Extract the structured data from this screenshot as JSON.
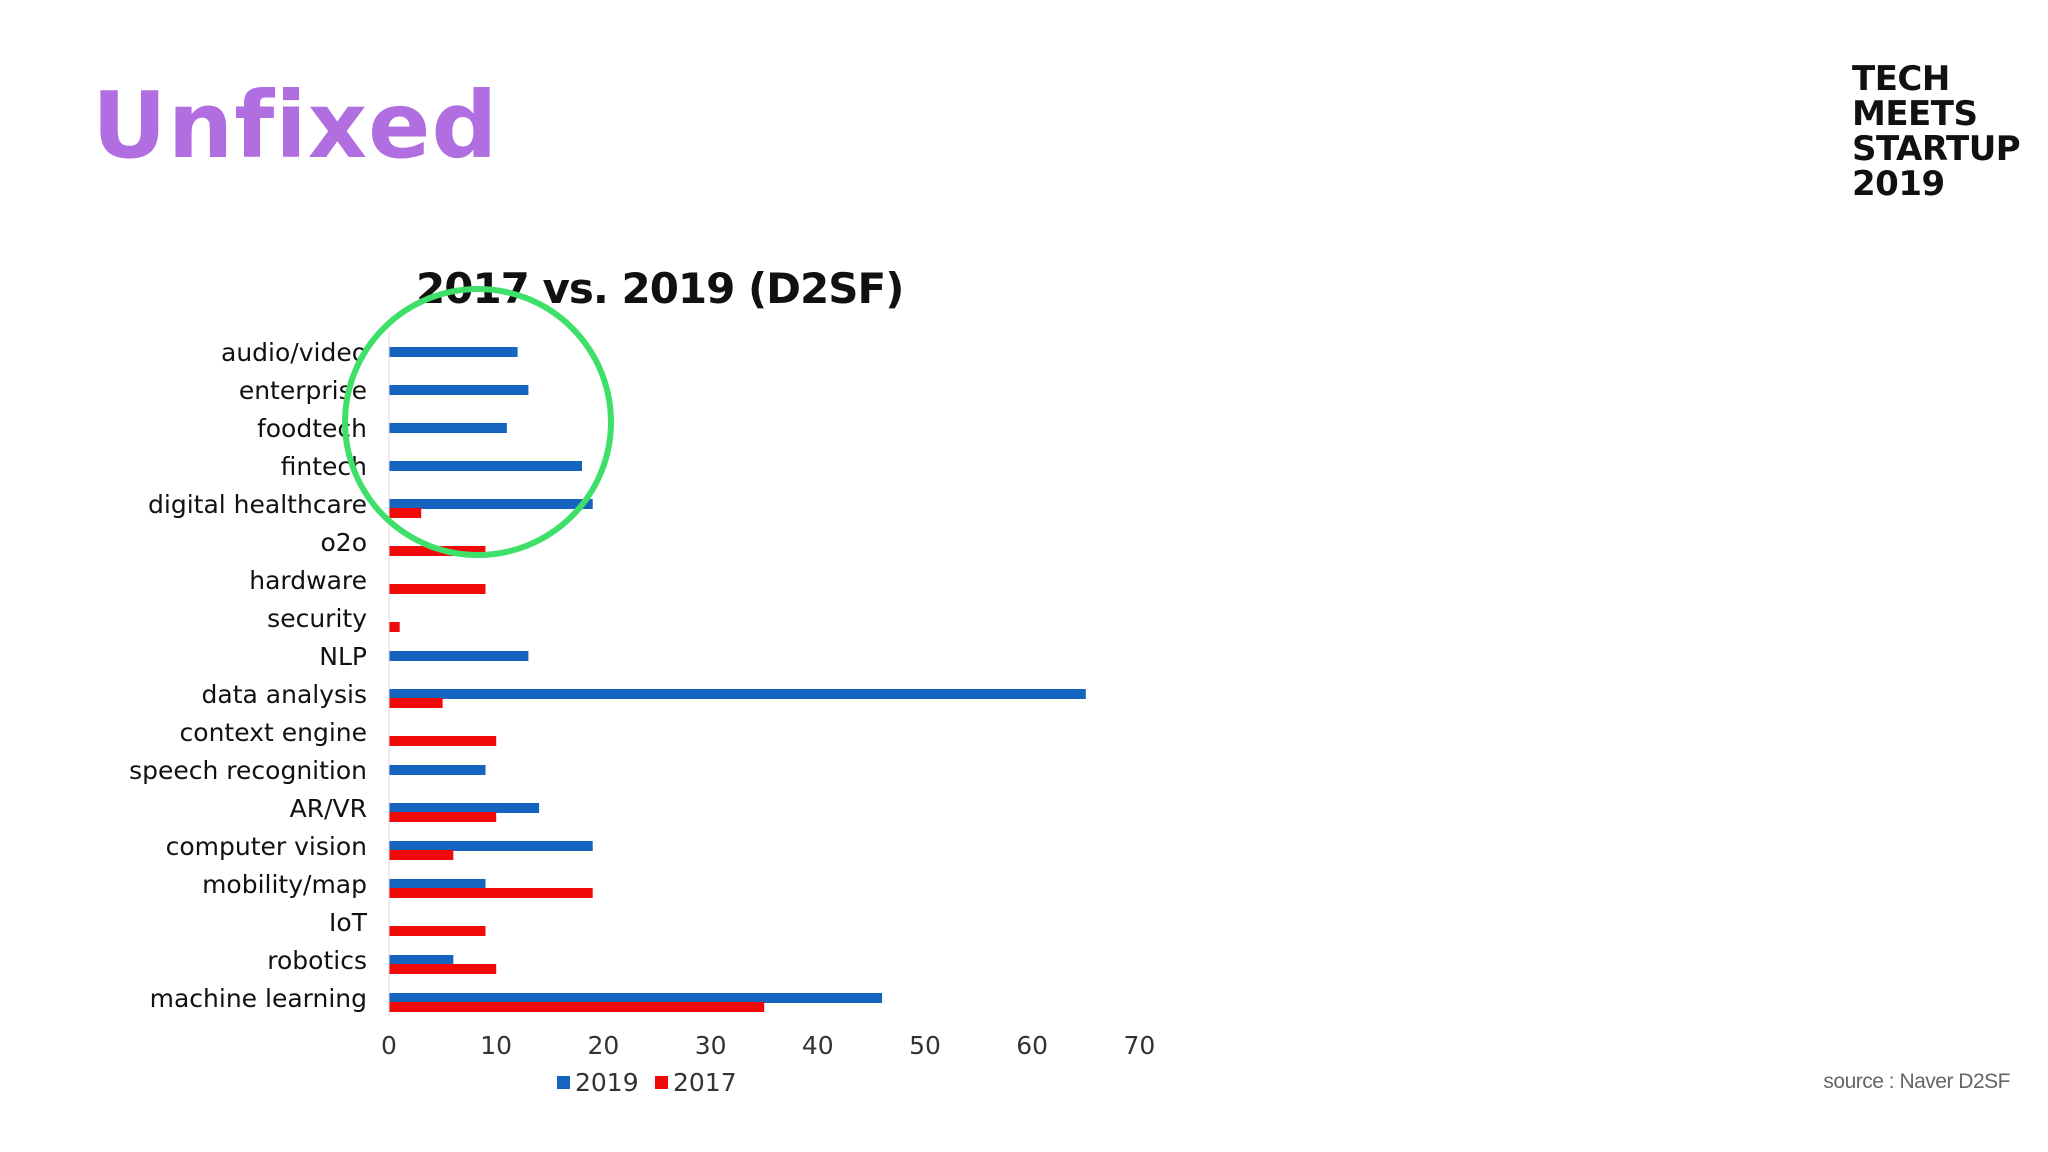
{
  "slide": {
    "title": "Unfixed",
    "brand_lines": [
      "TECH",
      "MEETS",
      "STARTUP",
      "2019"
    ],
    "source": "source : Naver D2SF"
  },
  "colors": {
    "title": "#b06ee0",
    "series_2019": "#1565c0",
    "series_2017": "#f00a0a",
    "highlight_circle": "#3ee06a"
  },
  "chart_data": {
    "type": "bar",
    "orientation": "horizontal",
    "title": "2017 vs. 2019 (D2SF)",
    "categories": [
      "audio/video",
      "enterprise",
      "foodtech",
      "fintech",
      "digital healthcare",
      "o2o",
      "hardware",
      "security",
      "NLP",
      "data analysis",
      "context engine",
      "speech recognition",
      "AR/VR",
      "computer vision",
      "mobility/map",
      "IoT",
      "robotics",
      "machine learning"
    ],
    "series": [
      {
        "name": "2019",
        "color": "#1565c0",
        "values": [
          12,
          13,
          11,
          18,
          19,
          0,
          0,
          0,
          13,
          65,
          0,
          9,
          14,
          19,
          9,
          0,
          6,
          46
        ]
      },
      {
        "name": "2017",
        "color": "#f00a0a",
        "values": [
          0,
          0,
          0,
          0,
          3,
          9,
          9,
          1,
          0,
          5,
          10,
          0,
          10,
          6,
          19,
          9,
          10,
          35
        ]
      }
    ],
    "xlim": [
      0,
      70
    ],
    "xticks": [
      0,
      10,
      20,
      30,
      40,
      50,
      60,
      70
    ],
    "grid": false,
    "legend": "bottom",
    "annotation": "green circle highlighting audio/video, enterprise, foodtech, fintech, digital healthcare"
  }
}
